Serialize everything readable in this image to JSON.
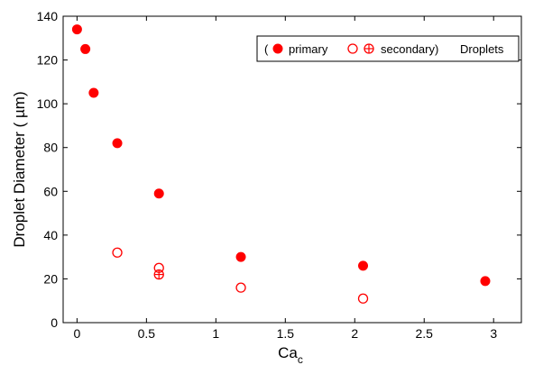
{
  "chart_data": {
    "type": "scatter",
    "xlabel": "Ca",
    "xlabel_subscript": "c",
    "ylabel": "Droplet Diameter ( µm)",
    "xlim": [
      -0.1,
      3.2
    ],
    "ylim": [
      0,
      140
    ],
    "xticks": [
      "0",
      "0.5",
      "1",
      "1.5",
      "2",
      "2.5",
      "3"
    ],
    "yticks": [
      "0",
      "20",
      "40",
      "60",
      "80",
      "100",
      "120",
      "140"
    ],
    "grid": false,
    "legend_position": "top-right",
    "legend": {
      "open_paren": "(",
      "primary_label": "primary",
      "secondary_label": "secondary)",
      "suffix": "Droplets"
    },
    "marker_color": "#ff0000",
    "series": [
      {
        "name": "primary",
        "marker": "filled-circle",
        "points": [
          {
            "x": 0.0,
            "y": 134
          },
          {
            "x": 0.06,
            "y": 125
          },
          {
            "x": 0.12,
            "y": 105
          },
          {
            "x": 0.29,
            "y": 82
          },
          {
            "x": 0.59,
            "y": 59
          },
          {
            "x": 1.18,
            "y": 30
          },
          {
            "x": 2.06,
            "y": 26
          },
          {
            "x": 2.94,
            "y": 19
          }
        ]
      },
      {
        "name": "secondary",
        "marker": "open-circle",
        "points": [
          {
            "x": 0.29,
            "y": 32
          },
          {
            "x": 0.59,
            "y": 25
          },
          {
            "x": 1.18,
            "y": 16
          },
          {
            "x": 2.06,
            "y": 11
          }
        ]
      },
      {
        "name": "secondary-crossed",
        "marker": "crossed-circle",
        "points": [
          {
            "x": 0.59,
            "y": 22
          }
        ]
      }
    ]
  }
}
